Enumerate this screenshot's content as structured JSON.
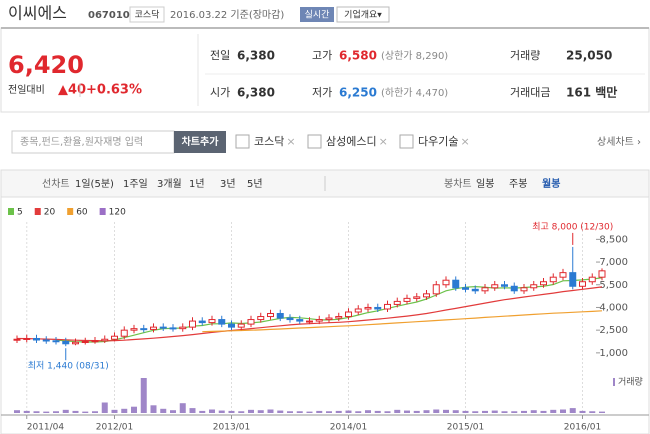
{
  "header": {
    "name": "이씨에스",
    "code": "067010",
    "market": "코스닥",
    "date": "2016.03.22 기준(장마감)",
    "realtime": "실시간",
    "company_info": "기업개요▾"
  },
  "price": {
    "current": "6,420",
    "change_label": "전일대비",
    "change": "▲40",
    "change_pct": "+0.63%"
  },
  "stats": [
    {
      "label": "전일",
      "value": "6,380",
      "note": null
    },
    {
      "label": "고가",
      "value": "6,580",
      "note": "(상한가 8,290)"
    },
    {
      "label": "거래량",
      "value": "25,050",
      "note": null
    },
    {
      "label": "시가",
      "value": "6,380",
      "note": null
    },
    {
      "label": "저가",
      "value": "6,250",
      "note": "(하한가 4,470)"
    },
    {
      "label": "거래대금",
      "value": "161 백만",
      "note": null
    }
  ],
  "controls": {
    "search_placeholder": "종목,펀드,환율,원자재명 입력",
    "add_button": "차트추가",
    "compare": [
      "코스닥",
      "삼성에스디",
      "다우기술"
    ],
    "detail": "상세차트 ›"
  },
  "tabs": {
    "line": [
      "선차트",
      "1일(5분)",
      "1주일",
      "3개월",
      "1년",
      "3년",
      "5년"
    ],
    "candle": [
      "봉차트",
      "일봉",
      "주봉",
      "월봉"
    ],
    "selected": "월봉"
  },
  "chart_data": {
    "type": "candlestick",
    "categories": [
      null,
      "2011/04",
      null,
      null,
      null,
      null,
      null,
      null,
      null,
      null,
      "2012/01",
      null,
      null,
      null,
      null,
      null,
      null,
      null,
      null,
      null,
      null,
      null,
      "2013/01",
      null,
      null,
      null,
      null,
      null,
      null,
      null,
      null,
      null,
      null,
      null,
      "2014/01",
      null,
      null,
      null,
      null,
      null,
      null,
      null,
      null,
      null,
      null,
      null,
      "2015/01",
      null,
      null,
      null,
      null,
      null,
      null,
      null,
      null,
      null,
      null,
      null,
      "2016/01",
      null,
      null
    ],
    "open": [
      1850,
      1900,
      1950,
      1850,
      1800,
      1750,
      1600,
      1700,
      1750,
      1800,
      1900,
      2100,
      2500,
      2600,
      2550,
      2700,
      2650,
      2600,
      2700,
      3100,
      3000,
      3200,
      2900,
      2700,
      2900,
      3200,
      3400,
      3600,
      3300,
      3200,
      3100,
      3100,
      3200,
      3300,
      3400,
      3700,
      3900,
      4000,
      3900,
      4200,
      4400,
      4600,
      4700,
      4900,
      5500,
      5800,
      5300,
      5200,
      5100,
      5300,
      5500,
      5400,
      5100,
      5300,
      5500,
      5700,
      6000,
      6300,
      5400,
      5700,
      6000
    ],
    "high": [
      2150,
      2200,
      2200,
      2100,
      2050,
      2000,
      1950,
      2000,
      2050,
      2150,
      2350,
      2750,
      2850,
      2850,
      2950,
      2950,
      2900,
      2950,
      3350,
      3350,
      3450,
      3450,
      3150,
      3150,
      3450,
      3650,
      3850,
      3850,
      3550,
      3450,
      3350,
      3450,
      3550,
      3650,
      3950,
      4150,
      4250,
      4250,
      4450,
      4650,
      4850,
      4950,
      5150,
      5750,
      6050,
      6050,
      5550,
      5450,
      5550,
      5750,
      5750,
      5650,
      5550,
      5750,
      5950,
      6250,
      6550,
      8000,
      5950,
      6250,
      6580
    ],
    "low": [
      1650,
      1700,
      1650,
      1600,
      1550,
      1440,
      1500,
      1550,
      1600,
      1650,
      1750,
      1900,
      2300,
      2350,
      2350,
      2450,
      2400,
      2400,
      2500,
      2800,
      2800,
      2700,
      2500,
      2500,
      2700,
      3000,
      3200,
      3100,
      3000,
      2900,
      2900,
      2900,
      3000,
      3100,
      3200,
      3500,
      3700,
      3700,
      3700,
      4000,
      4200,
      4400,
      4500,
      4700,
      5300,
      5100,
      5000,
      4900,
      4900,
      5100,
      5200,
      4900,
      4900,
      5100,
      5300,
      5500,
      5800,
      5200,
      5200,
      5500,
      5800
    ],
    "close": [
      1900,
      1950,
      1850,
      1800,
      1750,
      1600,
      1700,
      1750,
      1800,
      1900,
      2100,
      2500,
      2600,
      2550,
      2700,
      2650,
      2600,
      2700,
      3100,
      3000,
      3200,
      2900,
      2700,
      2900,
      3200,
      3400,
      3600,
      3300,
      3200,
      3100,
      3100,
      3200,
      3300,
      3400,
      3700,
      3900,
      4000,
      3900,
      4200,
      4400,
      4600,
      4700,
      4900,
      5500,
      5800,
      5300,
      5200,
      5100,
      5300,
      5500,
      5400,
      5100,
      5300,
      5500,
      5700,
      6000,
      6300,
      5400,
      5700,
      6000,
      6420
    ],
    "up_color": "#e0282e",
    "down_color": "#2a7ad2",
    "series": [
      {
        "name": "5",
        "color": "#6cc24a",
        "values": [
          null,
          null,
          null,
          null,
          1850,
          1790,
          1740,
          1720,
          1720,
          1750,
          1850,
          2010,
          2170,
          2330,
          2490,
          2600,
          2620,
          2640,
          2760,
          2810,
          2920,
          2920,
          2980,
          2940,
          2980,
          3040,
          3160,
          3280,
          3340,
          3320,
          3260,
          3180,
          3180,
          3220,
          3340,
          3500,
          3660,
          3780,
          3940,
          4080,
          4220,
          4360,
          4560,
          4820,
          5100,
          5240,
          5340,
          5380,
          5340,
          5280,
          5300,
          5280,
          5320,
          5360,
          5400,
          5520,
          5760,
          5780,
          5820,
          5880,
          5960
        ]
      },
      {
        "name": "20",
        "color": "#e23b3b",
        "values": [
          1950,
          1940,
          1930,
          1910,
          1890,
          1860,
          1840,
          1820,
          1810,
          1800,
          1810,
          1840,
          1880,
          1920,
          1970,
          2020,
          2080,
          2140,
          2210,
          2280,
          2350,
          2420,
          2480,
          2540,
          2600,
          2660,
          2730,
          2790,
          2850,
          2900,
          2930,
          2960,
          2990,
          3020,
          3060,
          3110,
          3170,
          3230,
          3290,
          3360,
          3430,
          3510,
          3600,
          3710,
          3830,
          3940,
          4060,
          4170,
          4290,
          4400,
          4510,
          4600,
          4690,
          4780,
          4860,
          4950,
          5050,
          5120,
          5200,
          5280,
          5360
        ]
      },
      {
        "name": "60",
        "color": "#f0a030",
        "values": [
          null,
          null,
          null,
          null,
          null,
          null,
          null,
          null,
          null,
          null,
          null,
          null,
          null,
          null,
          null,
          null,
          null,
          null,
          null,
          2400,
          2420,
          2440,
          2460,
          2480,
          2500,
          2520,
          2550,
          2580,
          2610,
          2640,
          2670,
          2700,
          2730,
          2760,
          2790,
          2820,
          2860,
          2900,
          2940,
          2980,
          3020,
          3060,
          3100,
          3140,
          3180,
          3220,
          3260,
          3300,
          3340,
          3380,
          3420,
          3460,
          3500,
          3540,
          3580,
          3620,
          3650,
          3680,
          3710,
          3740,
          3780
        ]
      },
      {
        "name": "120",
        "color": "#9b6fc6",
        "values": [
          null,
          null,
          null,
          null,
          null,
          null,
          null,
          null,
          null,
          null,
          null,
          null,
          null,
          null,
          null,
          null,
          null,
          null,
          null,
          null,
          null,
          null,
          null,
          null,
          null,
          null,
          null,
          null,
          null,
          null,
          null,
          null,
          null,
          null,
          null,
          null,
          null,
          null,
          null,
          null,
          null,
          null,
          null,
          null,
          null,
          null,
          null,
          null,
          null,
          null,
          null,
          null,
          null,
          null,
          null,
          null,
          null,
          null,
          null,
          null,
          null
        ]
      }
    ],
    "volume": {
      "name": "거래량",
      "color": "#9f86c8",
      "ylim": [
        0,
        100
      ],
      "values": [
        8,
        6,
        5,
        4,
        5,
        9,
        6,
        4,
        5,
        30,
        9,
        12,
        18,
        100,
        22,
        12,
        8,
        28,
        14,
        6,
        10,
        7,
        6,
        5,
        9,
        8,
        10,
        7,
        5,
        5,
        4,
        6,
        5,
        6,
        7,
        5,
        8,
        6,
        5,
        9,
        7,
        6,
        8,
        10,
        9,
        8,
        6,
        5,
        6,
        7,
        5,
        5,
        6,
        8,
        6,
        9,
        10,
        14,
        6,
        5,
        4
      ]
    },
    "ylim": [
      0,
      9250
    ],
    "yticks": [
      {
        "value": 1000,
        "label": "1,000"
      },
      {
        "value": 2500,
        "label": "2,500"
      },
      {
        "value": 4000,
        "label": "4,000"
      },
      {
        "value": 5500,
        "label": "5,500"
      },
      {
        "value": 7000,
        "label": "7,000"
      },
      {
        "value": 8500,
        "label": "8,500"
      }
    ],
    "grid": true,
    "annotations": [
      {
        "text": "최고 8,000 (12/30)",
        "index": 57,
        "value": 8000
      },
      {
        "text": "최저 1,440 (08/31)",
        "index": 5,
        "value": 1440
      }
    ]
  }
}
